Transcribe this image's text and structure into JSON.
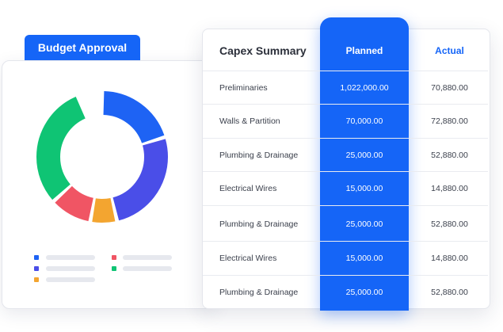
{
  "budget": {
    "tab_label": "Budget Approval",
    "chart_colors": [
      "#1e63f4",
      "#4a4ee8",
      "#f3a530",
      "#f05564",
      "#0fc474"
    ]
  },
  "summary": {
    "title": "Capex Summary",
    "columns": {
      "planned": "Planned",
      "actual": "Actual"
    },
    "rows": [
      {
        "item": "Preliminaries",
        "planned": "1,022,000.00",
        "actual": "70,880.00"
      },
      {
        "item": "Walls & Partition",
        "planned": "70,000.00",
        "actual": "72,880.00"
      },
      {
        "item": "Plumbing & Drainage",
        "planned": "25,000.00",
        "actual": "52,880.00"
      },
      {
        "item": "Electrical Wires",
        "planned": "15,000.00",
        "actual": "14,880.00"
      },
      {
        "item": "Plumbing & Drainage",
        "planned": "25,000.00",
        "actual": "52,880.00"
      },
      {
        "item": "Electrical Wires",
        "planned": "15,000.00",
        "actual": "14,880.00"
      },
      {
        "item": "Plumbing & Drainage",
        "planned": "25,000.00",
        "actual": "52,880.00"
      }
    ]
  }
}
